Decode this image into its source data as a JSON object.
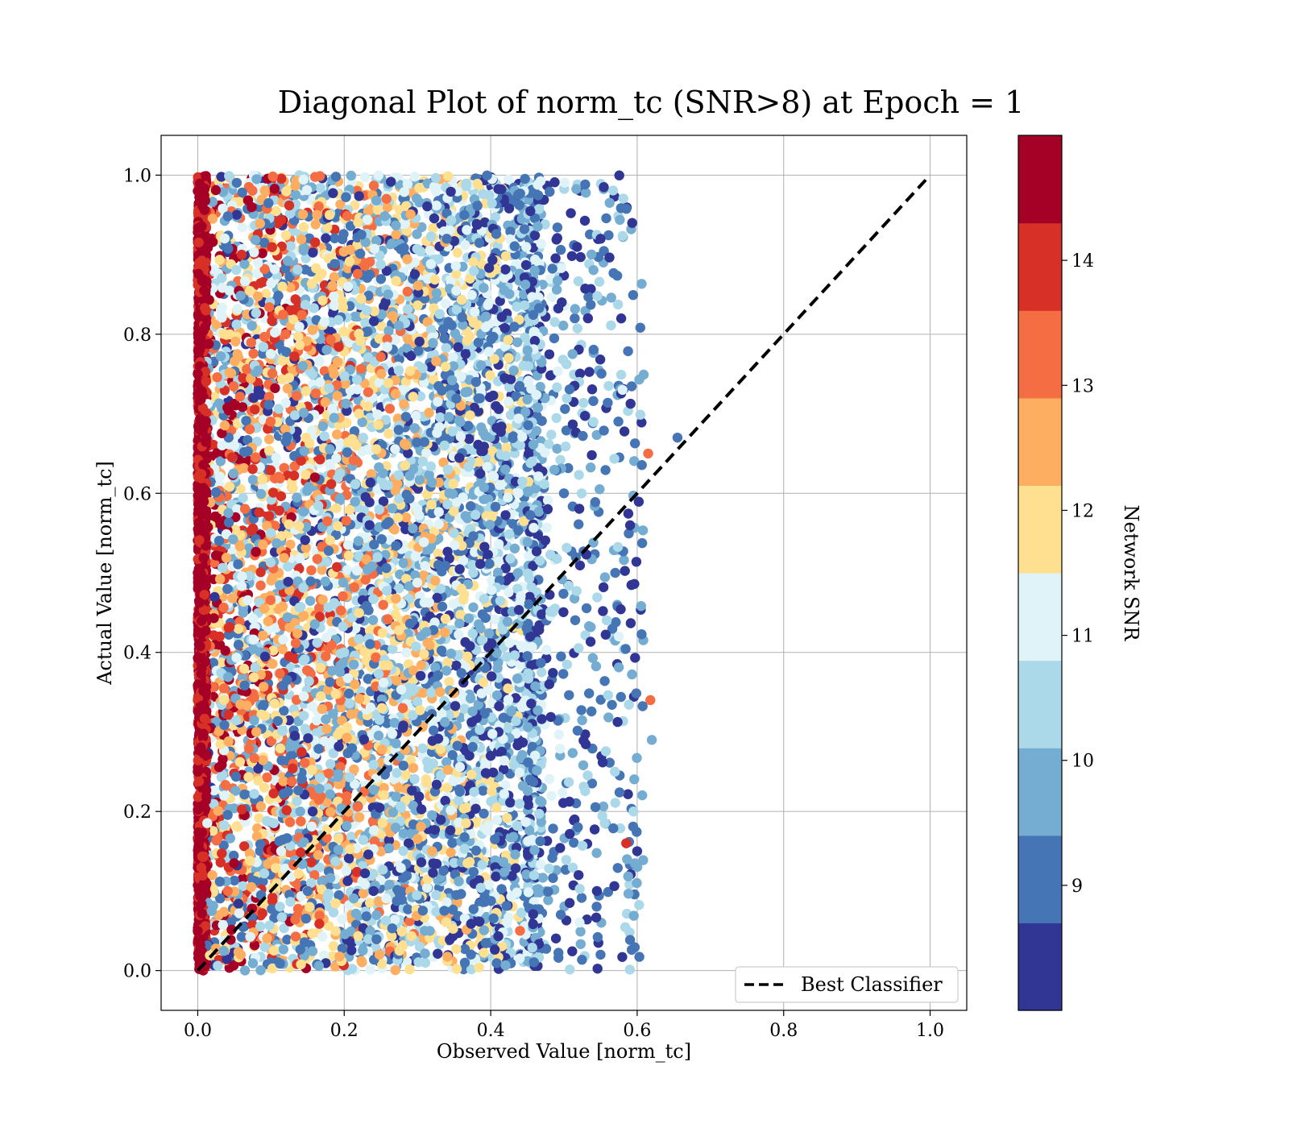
{
  "chart_data": {
    "type": "scatter",
    "title": "Diagonal Plot of norm_tc (SNR>8) at Epoch = 1",
    "xlabel": "Observed Value [norm_tc]",
    "ylabel": "Actual Value [norm_tc]",
    "xlim": [
      -0.05,
      1.05
    ],
    "ylim": [
      -0.05,
      1.05
    ],
    "xticks": [
      "0.0",
      "0.2",
      "0.4",
      "0.6",
      "0.8",
      "1.0"
    ],
    "yticks": [
      "0.0",
      "0.2",
      "0.4",
      "0.6",
      "0.8",
      "1.0"
    ],
    "grid": true,
    "legend": {
      "position": "lower-right",
      "entries": [
        "Best Classifier"
      ]
    },
    "reference_line": {
      "name": "Best Classifier",
      "style": "dashed",
      "color": "#000000",
      "points": [
        [
          0,
          0
        ],
        [
          1,
          1
        ]
      ]
    },
    "colorbar": {
      "label": "Network SNR",
      "range": [
        8,
        15
      ],
      "ticks": [
        "9",
        "10",
        "11",
        "12",
        "13",
        "14"
      ],
      "colors": [
        "#313695",
        "#4575b4",
        "#74add1",
        "#abd9e9",
        "#e0f3f8",
        "#fee090",
        "#fdae61",
        "#f46d43",
        "#d73027",
        "#a50026"
      ]
    },
    "points_note": "dense scatter; approx sample below",
    "series": [
      {
        "color_by": "Network SNR",
        "points": [
          [
            0.0,
            0.05,
            14.8
          ],
          [
            0.0,
            0.25,
            14.6
          ],
          [
            0.0,
            0.5,
            14.9
          ],
          [
            0.0,
            0.75,
            14.7
          ],
          [
            0.0,
            0.98,
            14.8
          ],
          [
            0.02,
            0.12,
            12.5
          ],
          [
            0.03,
            0.42,
            13.8
          ],
          [
            0.05,
            0.66,
            11.2
          ],
          [
            0.06,
            0.9,
            14.1
          ],
          [
            0.08,
            0.3,
            12.8
          ],
          [
            0.1,
            0.55,
            10.5
          ],
          [
            0.12,
            0.8,
            13.2
          ],
          [
            0.14,
            0.2,
            9.4
          ],
          [
            0.16,
            0.62,
            14.3
          ],
          [
            0.18,
            0.95,
            11.8
          ],
          [
            0.2,
            0.4,
            10.2
          ],
          [
            0.22,
            0.7,
            12.1
          ],
          [
            0.24,
            0.1,
            8.6
          ],
          [
            0.26,
            0.85,
            9.8
          ],
          [
            0.28,
            0.33,
            13.5
          ],
          [
            0.3,
            0.58,
            10.9
          ],
          [
            0.32,
            0.15,
            12.4
          ],
          [
            0.34,
            0.92,
            8.9
          ],
          [
            0.36,
            0.48,
            11.5
          ],
          [
            0.38,
            0.74,
            9.2
          ],
          [
            0.4,
            0.27,
            8.4
          ],
          [
            0.42,
            0.63,
            10.1
          ],
          [
            0.44,
            0.05,
            13.0
          ],
          [
            0.46,
            0.88,
            9.6
          ],
          [
            0.48,
            0.36,
            8.7
          ],
          [
            0.5,
            0.6,
            9.0
          ],
          [
            0.52,
            0.12,
            8.5
          ],
          [
            0.55,
            0.92,
            8.3
          ],
          [
            0.57,
            0.5,
            9.3
          ],
          [
            0.585,
            0.16,
            13.9
          ],
          [
            0.6,
            0.15,
            8.4
          ],
          [
            0.615,
            0.65,
            13.3
          ],
          [
            0.618,
            0.34,
            13.4
          ],
          [
            0.62,
            0.29,
            9.7
          ],
          [
            0.655,
            0.67,
            9.3
          ],
          [
            0.595,
            0.2,
            10.6
          ],
          [
            0.575,
            0.42,
            10.8
          ],
          [
            0.58,
            0.73,
            11.2
          ],
          [
            0.55,
            0.02,
            8.8
          ],
          [
            0.545,
            0.1,
            8.2
          ]
        ]
      }
    ]
  }
}
